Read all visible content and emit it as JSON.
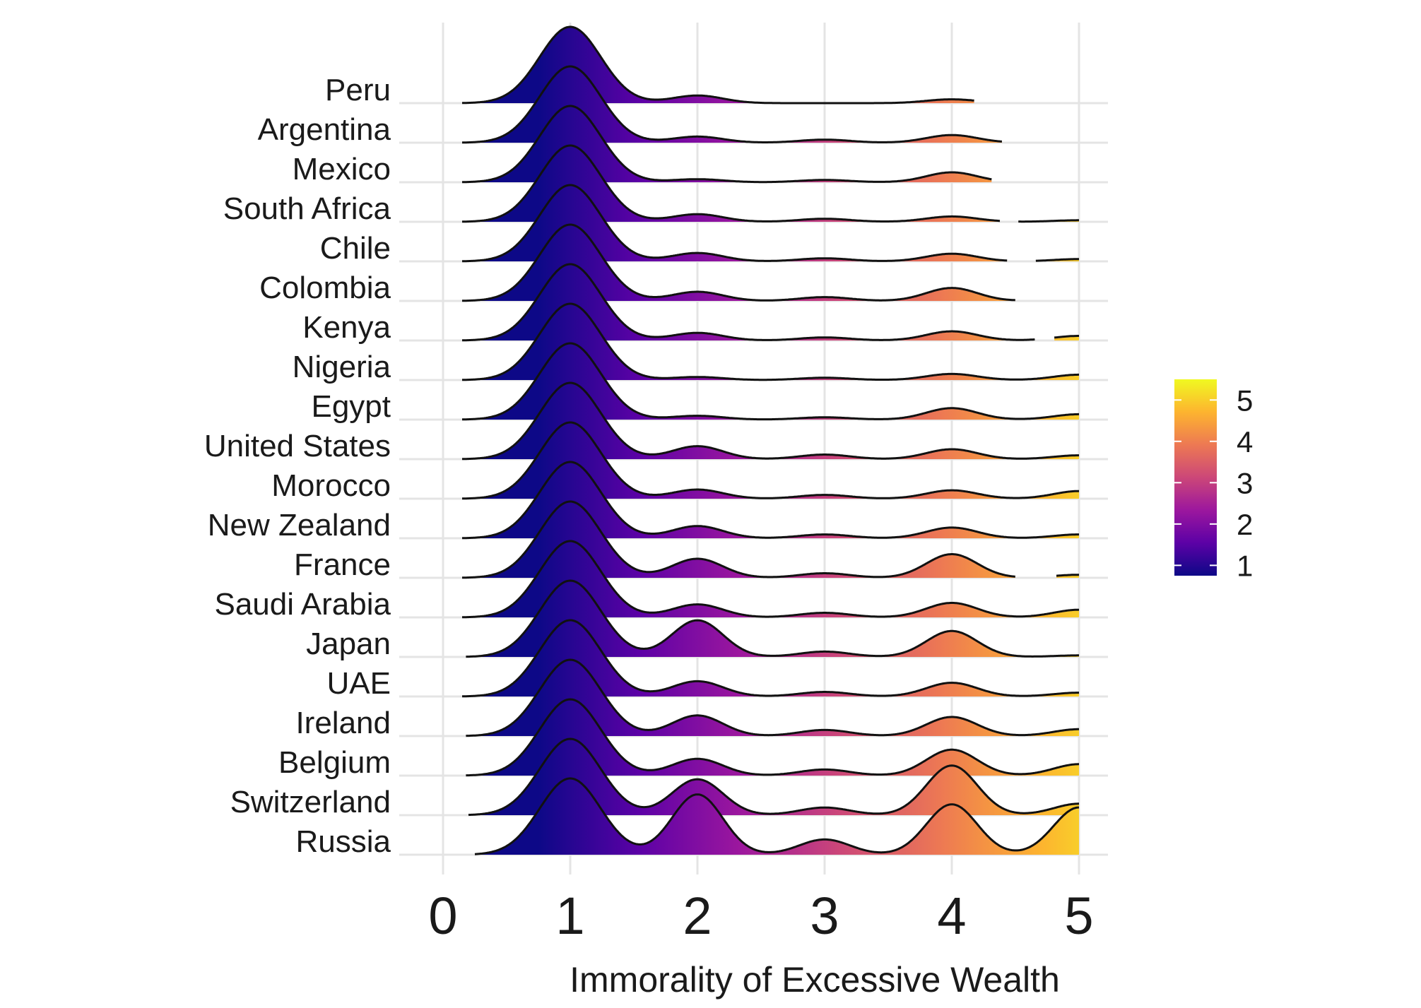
{
  "chart_data": {
    "type": "ridgeline",
    "title": "",
    "xlabel": "Immorality of Excessive Wealth",
    "ylabel": "",
    "xlim": [
      0,
      5
    ],
    "x_ticks": [
      "0",
      "1",
      "2",
      "3",
      "4",
      "5"
    ],
    "grid": true,
    "colorbar": {
      "ticks": [
        "1",
        "2",
        "3",
        "4",
        "5"
      ],
      "range": [
        0.75,
        5.5
      ],
      "colors": [
        "#0d0887",
        "#5c01a6",
        "#9c179e",
        "#cc4778",
        "#ed7953",
        "#fdb42f",
        "#f0f921"
      ]
    },
    "series": [
      {
        "name": "Peru",
        "start": 0.15,
        "gaps": [
          [
            4.18,
            5.0
          ]
        ],
        "peaks": [
          1.0,
          0.1,
          0.0,
          0.05,
          0.0
        ]
      },
      {
        "name": "Argentina",
        "start": 0.15,
        "gaps": [
          [
            4.4,
            5.0
          ]
        ],
        "peaks": [
          1.0,
          0.08,
          0.04,
          0.1,
          0.04
        ]
      },
      {
        "name": "Mexico",
        "start": 0.15,
        "gaps": [
          [
            4.32,
            5.0
          ]
        ],
        "peaks": [
          1.0,
          0.04,
          0.03,
          0.13,
          0.03
        ]
      },
      {
        "name": "South Africa",
        "start": 0.15,
        "gaps": [
          [
            4.38,
            4.52
          ]
        ],
        "peaks": [
          1.0,
          0.1,
          0.04,
          0.07,
          0.02
        ]
      },
      {
        "name": "Chile",
        "start": 0.15,
        "gaps": [
          [
            4.44,
            4.66
          ]
        ],
        "peaks": [
          1.0,
          0.11,
          0.04,
          0.1,
          0.03
        ]
      },
      {
        "name": "Colombia",
        "start": 0.15,
        "gaps": [
          [
            4.5,
            5.0
          ]
        ],
        "peaks": [
          1.0,
          0.12,
          0.05,
          0.17,
          0.06
        ]
      },
      {
        "name": "Kenya",
        "start": 0.15,
        "gaps": [
          [
            4.66,
            4.8
          ]
        ],
        "peaks": [
          1.0,
          0.1,
          0.04,
          0.12,
          0.06
        ]
      },
      {
        "name": "Nigeria",
        "start": 0.15,
        "gaps": [],
        "peaks": [
          1.0,
          0.04,
          0.03,
          0.08,
          0.07
        ]
      },
      {
        "name": "Egypt",
        "start": 0.15,
        "gaps": [],
        "peaks": [
          1.0,
          0.05,
          0.03,
          0.15,
          0.07
        ]
      },
      {
        "name": "United States",
        "start": 0.15,
        "gaps": [],
        "peaks": [
          1.0,
          0.17,
          0.06,
          0.13,
          0.05
        ]
      },
      {
        "name": "Morocco",
        "start": 0.15,
        "gaps": [],
        "peaks": [
          1.0,
          0.12,
          0.05,
          0.11,
          0.1
        ]
      },
      {
        "name": "New Zealand",
        "start": 0.15,
        "gaps": [],
        "peaks": [
          1.0,
          0.16,
          0.05,
          0.14,
          0.05
        ]
      },
      {
        "name": "France",
        "start": 0.15,
        "gaps": [
          [
            4.5,
            4.82
          ]
        ],
        "peaks": [
          1.0,
          0.25,
          0.06,
          0.31,
          0.04
        ]
      },
      {
        "name": "Saudi Arabia",
        "start": 0.15,
        "gaps": [],
        "peaks": [
          1.0,
          0.17,
          0.06,
          0.19,
          0.1
        ]
      },
      {
        "name": "Japan",
        "start": 0.18,
        "gaps": [],
        "peaks": [
          1.0,
          0.48,
          0.07,
          0.34,
          0.02
        ]
      },
      {
        "name": "UAE",
        "start": 0.15,
        "gaps": [],
        "peaks": [
          1.0,
          0.2,
          0.06,
          0.18,
          0.05
        ]
      },
      {
        "name": "Ireland",
        "start": 0.18,
        "gaps": [],
        "peaks": [
          1.0,
          0.27,
          0.08,
          0.25,
          0.09
        ]
      },
      {
        "name": "Belgium",
        "start": 0.18,
        "gaps": [],
        "peaks": [
          1.0,
          0.22,
          0.08,
          0.34,
          0.15
        ]
      },
      {
        "name": "Switzerland",
        "start": 0.2,
        "gaps": [],
        "peaks": [
          1.0,
          0.47,
          0.1,
          0.65,
          0.15
        ]
      },
      {
        "name": "Russia",
        "start": 0.25,
        "gaps": [],
        "peaks": [
          1.0,
          0.79,
          0.2,
          0.66,
          0.62
        ]
      }
    ]
  }
}
